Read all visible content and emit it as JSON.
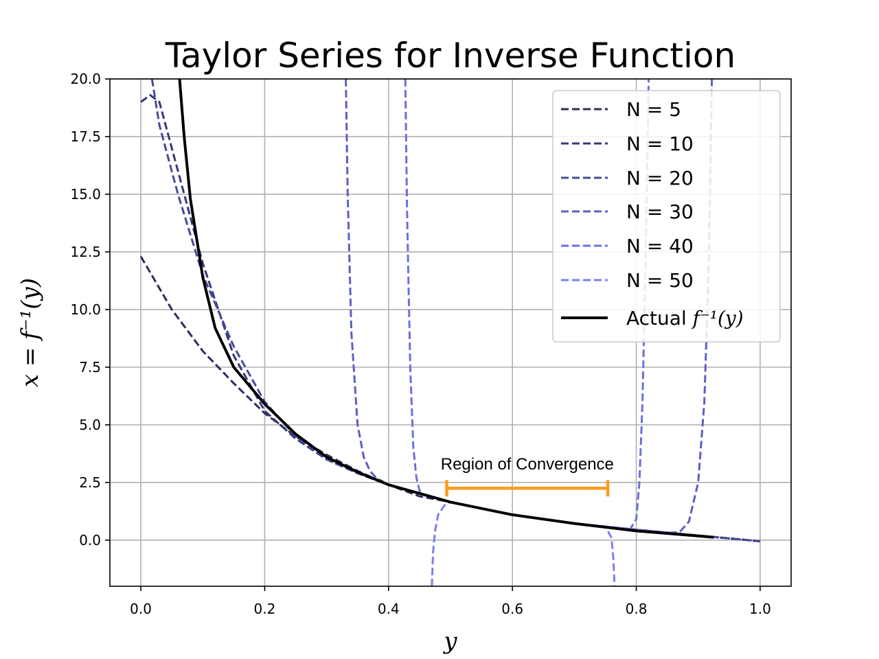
{
  "chart_data": {
    "type": "line",
    "title": "Taylor Series for Inverse Function",
    "xlabel": "y",
    "ylabel": "x = f⁻¹(y)",
    "xlim": [
      -0.05,
      1.05
    ],
    "ylim": [
      -2.0,
      20.0
    ],
    "xticks": [
      0.0,
      0.2,
      0.4,
      0.6,
      0.8,
      1.0
    ],
    "xtick_labels": [
      "0.0",
      "0.2",
      "0.4",
      "0.6",
      "0.8",
      "1.0"
    ],
    "yticks": [
      0.0,
      2.5,
      5.0,
      7.5,
      10.0,
      12.5,
      15.0,
      17.5,
      20.0
    ],
    "ytick_labels": [
      "0.0",
      "2.5",
      "5.0",
      "7.5",
      "10.0",
      "12.5",
      "15.0",
      "17.5",
      "20.0"
    ],
    "grid": true,
    "legend_position": "top-right",
    "series": [
      {
        "name": "N = 5",
        "color": "#2b2d5e",
        "style": "dashed",
        "x": [
          0.0,
          0.05,
          0.1,
          0.15,
          0.2,
          0.25,
          0.3,
          0.35,
          0.4,
          0.45,
          0.5,
          0.6,
          0.7,
          0.8,
          0.9,
          1.0
        ],
        "y": [
          12.3,
          10.0,
          8.2,
          6.8,
          5.5,
          4.5,
          3.7,
          3.0,
          2.4,
          1.9,
          1.65,
          1.1,
          0.72,
          0.45,
          0.2,
          -0.05
        ]
      },
      {
        "name": "N = 10",
        "color": "#33377a",
        "style": "dashed",
        "x": [
          0.0,
          0.015,
          0.03,
          0.06,
          0.1,
          0.15,
          0.2,
          0.25,
          0.3,
          0.35,
          0.4,
          0.5,
          0.6,
          0.7,
          0.8,
          0.9,
          1.0
        ],
        "y": [
          19.0,
          19.3,
          19.0,
          16.0,
          12.0,
          8.0,
          5.6,
          4.4,
          3.5,
          2.9,
          2.4,
          1.65,
          1.1,
          0.72,
          0.45,
          0.2,
          -0.05
        ]
      },
      {
        "name": "N = 20",
        "color": "#454a9a",
        "style": "dashed",
        "x": [
          0.018,
          0.03,
          0.06,
          0.1,
          0.15,
          0.2,
          0.25,
          0.3,
          0.35,
          0.4,
          0.5,
          0.6,
          0.7,
          0.8,
          0.9,
          1.0
        ],
        "y": [
          20.0,
          18.0,
          15.0,
          11.5,
          8.4,
          6.0,
          4.5,
          3.5,
          2.9,
          2.4,
          1.65,
          1.1,
          0.72,
          0.45,
          0.2,
          -0.05
        ]
      },
      {
        "name": "N = 30",
        "color": "#5a5fc4",
        "style": "dashed",
        "x": [
          0.331,
          0.334,
          0.34,
          0.35,
          0.36,
          0.37,
          0.38,
          0.4,
          0.5,
          0.6,
          0.7,
          0.8,
          0.85,
          0.87,
          0.885,
          0.9,
          0.91,
          0.917,
          0.922
        ],
        "y": [
          20.0,
          15.0,
          9.0,
          5.0,
          3.6,
          3.0,
          2.7,
          2.4,
          1.65,
          1.1,
          0.72,
          0.45,
          0.32,
          0.35,
          0.8,
          2.5,
          6.0,
          12.0,
          20.0
        ]
      },
      {
        "name": "N = 40",
        "color": "#6a70de",
        "style": "dashed",
        "x": [
          0.427,
          0.43,
          0.435,
          0.44,
          0.445,
          0.45,
          0.455,
          0.47,
          0.5,
          0.6,
          0.7,
          0.79,
          0.8,
          0.805,
          0.81,
          0.815,
          0.82
        ],
        "y": [
          20.0,
          14.0,
          7.5,
          4.0,
          2.7,
          2.15,
          2.0,
          1.9,
          1.65,
          1.1,
          0.72,
          0.47,
          0.9,
          2.5,
          6.0,
          12.0,
          20.0
        ]
      },
      {
        "name": "N = 50",
        "color": "#7a80f0",
        "style": "dashed",
        "x": [
          0.47,
          0.472,
          0.475,
          0.48,
          0.49,
          0.5,
          0.6,
          0.7,
          0.75,
          0.76,
          0.763,
          0.765
        ],
        "y": [
          -2.0,
          -0.5,
          0.4,
          1.1,
          1.5,
          1.65,
          1.1,
          0.72,
          0.6,
          0.1,
          -0.8,
          -2.0
        ]
      },
      {
        "name": "Actual f⁻¹(y)",
        "color": "#000000",
        "style": "solid",
        "x": [
          0.0625,
          0.07,
          0.08,
          0.1,
          0.12,
          0.15,
          0.2,
          0.25,
          0.3,
          0.35,
          0.4,
          0.5,
          0.6,
          0.7,
          0.8,
          0.9,
          0.925
        ],
        "y": [
          20.0,
          17.5,
          14.8,
          11.4,
          9.2,
          7.5,
          5.9,
          4.6,
          3.6,
          2.95,
          2.4,
          1.65,
          1.1,
          0.72,
          0.4,
          0.18,
          0.12
        ]
      }
    ],
    "annotation": {
      "text": "Region of Convergence",
      "color": "#ff9a1e",
      "x_start": 0.494,
      "x_end": 0.754,
      "y": 2.25,
      "text_x": 0.624,
      "text_y": 3.3
    }
  }
}
